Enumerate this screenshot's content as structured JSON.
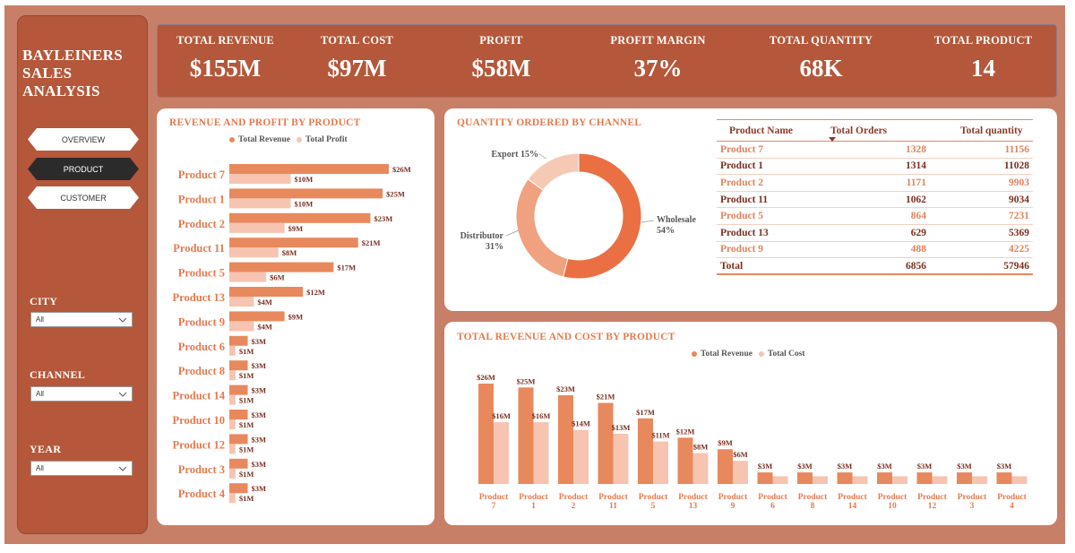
{
  "sidebar": {
    "title_lines": [
      "BAYLEINERS",
      "SALES",
      "ANALYSIS"
    ],
    "nav": [
      {
        "label": "OVERVIEW",
        "active": false
      },
      {
        "label": "PRODUCT",
        "active": true
      },
      {
        "label": "CUSTOMER",
        "active": false
      }
    ],
    "filters": [
      {
        "label": "CITY",
        "value": "All"
      },
      {
        "label": "CHANNEL",
        "value": "All"
      },
      {
        "label": "YEAR",
        "value": "All"
      }
    ]
  },
  "kpis": [
    {
      "label": "TOTAL REVENUE",
      "value": "$155M"
    },
    {
      "label": "TOTAL COST",
      "value": "$97M"
    },
    {
      "label": "PROFIT",
      "value": "$58M"
    },
    {
      "label": "PROFIT MARGIN",
      "value": "37%"
    },
    {
      "label": "TOTAL QUANTITY",
      "value": "68K"
    },
    {
      "label": "TOTAL PRODUCT",
      "value": "14"
    }
  ],
  "colors": {
    "primary": "#e8895d",
    "secondary": "#f6c4b0",
    "donut_main": "#ea7043",
    "donut_mid": "#f0a17f",
    "donut_light": "#f6c9b4"
  },
  "chart_data": [
    {
      "type": "bar",
      "orientation": "horizontal",
      "title": "REVENUE AND PROFIT BY PRODUCT",
      "legend_position": "top",
      "categories": [
        "Product 7",
        "Product 1",
        "Product 2",
        "Product 11",
        "Product 5",
        "Product 13",
        "Product 9",
        "Product 6",
        "Product 8",
        "Product 14",
        "Product 10",
        "Product 12",
        "Product 3",
        "Product 4"
      ],
      "series": [
        {
          "name": "Total Revenue",
          "values": [
            26,
            25,
            23,
            21,
            17,
            12,
            9,
            3,
            3,
            3,
            3,
            3,
            3,
            3
          ],
          "labels": [
            "$26M",
            "$25M",
            "$23M",
            "$21M",
            "$17M",
            "$12M",
            "$9M",
            "$3M",
            "$3M",
            "$3M",
            "$3M",
            "$3M",
            "$3M",
            "$3M"
          ]
        },
        {
          "name": "Total Profit",
          "values": [
            10,
            10,
            9,
            8,
            6,
            4,
            4,
            1,
            1,
            1,
            1,
            1,
            1,
            1
          ],
          "labels": [
            "$10M",
            "$10M",
            "$9M",
            "$8M",
            "$6M",
            "$4M",
            "$4M",
            "$1M",
            "$1M",
            "$1M",
            "$1M",
            "$1M",
            "$1M",
            "$1M"
          ]
        }
      ],
      "xlim": [
        0,
        28
      ]
    },
    {
      "type": "pie",
      "donut": true,
      "title": "QUANTITY ORDERED BY CHANNEL",
      "slices": [
        {
          "name": "Wholesale",
          "value": 54,
          "label": "54%"
        },
        {
          "name": "Distributor",
          "value": 31,
          "label": "31%"
        },
        {
          "name": "Export",
          "value": 15,
          "label": "15%"
        }
      ]
    },
    {
      "type": "table",
      "columns": [
        "Product Name",
        "Total Orders",
        "Total quantity"
      ],
      "sort_column": "Total Orders",
      "rows": [
        [
          "Product 7",
          "1328",
          "11156"
        ],
        [
          "Product 1",
          "1314",
          "11028"
        ],
        [
          "Product 2",
          "1171",
          "9903"
        ],
        [
          "Product 11",
          "1062",
          "9034"
        ],
        [
          "Product 5",
          "864",
          "7231"
        ],
        [
          "Product 13",
          "629",
          "5369"
        ],
        [
          "Product 9",
          "488",
          "4225"
        ]
      ],
      "total": [
        "Total",
        "6856",
        "57946"
      ]
    },
    {
      "type": "bar",
      "orientation": "vertical",
      "title": "TOTAL REVENUE AND COST BY PRODUCT",
      "legend_position": "top-right",
      "categories": [
        [
          "Product",
          "7"
        ],
        [
          "Product",
          "1"
        ],
        [
          "Product",
          "2"
        ],
        [
          "Product",
          "11"
        ],
        [
          "Product",
          "5"
        ],
        [
          "Product",
          "13"
        ],
        [
          "Product",
          "9"
        ],
        [
          "Product",
          "6"
        ],
        [
          "Product",
          "8"
        ],
        [
          "Product",
          "14"
        ],
        [
          "Product",
          "10"
        ],
        [
          "Product",
          "12"
        ],
        [
          "Product",
          "3"
        ],
        [
          "Product",
          "4"
        ]
      ],
      "series": [
        {
          "name": "Total Revenue",
          "values": [
            26,
            25,
            23,
            21,
            17,
            12,
            9,
            3,
            3,
            3,
            3,
            3,
            3,
            3
          ],
          "labels": [
            "$26M",
            "$25M",
            "$23M",
            "$21M",
            "$17M",
            "$12M",
            "$9M",
            "$3M",
            "$3M",
            "$3M",
            "$3M",
            "$3M",
            "$3M",
            "$3M"
          ]
        },
        {
          "name": "Total Cost",
          "values": [
            16,
            16,
            14,
            13,
            11,
            8,
            6,
            2,
            2,
            2,
            2,
            2,
            2,
            2
          ],
          "labels": [
            "$16M",
            "$16M",
            "$14M",
            "$13M",
            "$11M",
            "$8M",
            "$6M",
            "",
            "",
            "",
            "",
            "",
            "",
            ""
          ]
        }
      ],
      "ylim": [
        0,
        27
      ]
    }
  ]
}
